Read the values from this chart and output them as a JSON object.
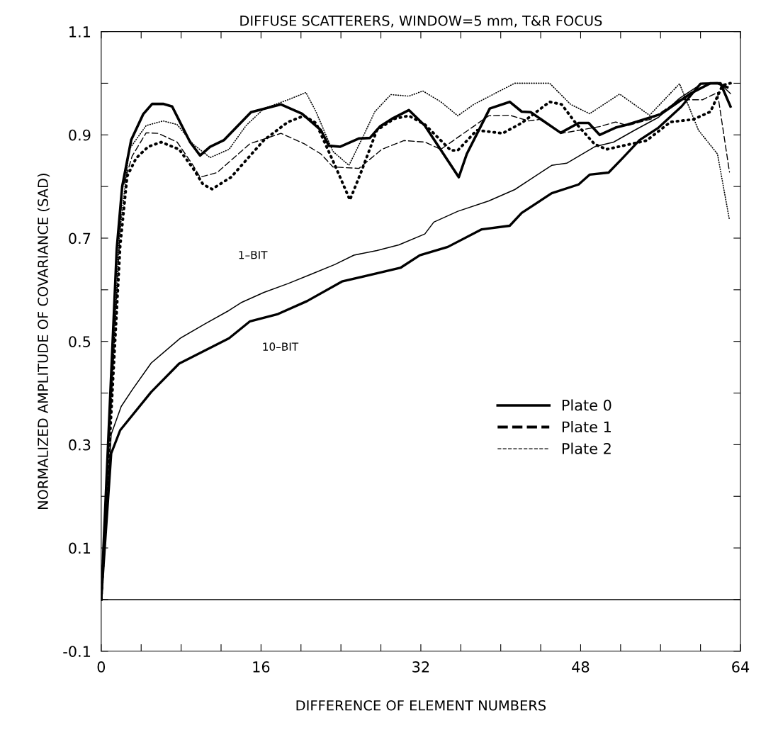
{
  "chart_data": {
    "type": "line",
    "title": "DIFFUSE SCATTERERS, WINDOW=5 mm, T&R FOCUS",
    "xlabel": "DIFFERENCE OF ELEMENT NUMBERS",
    "ylabel": "NORMALIZED AMPLITUDE OF COVARIANCE (SAD)",
    "xlim": [
      0,
      64
    ],
    "ylim": [
      -0.1,
      1.1
    ],
    "xticks": [
      0,
      {
        "value": 4,
        "label": null
      },
      {
        "value": 8,
        "label": null
      },
      {
        "value": 12,
        "label": null
      },
      16,
      {
        "value": 20,
        "label": null
      },
      {
        "value": 24,
        "label": null
      },
      {
        "value": 28,
        "label": null
      },
      32,
      {
        "value": 36,
        "label": null
      },
      {
        "value": 40,
        "label": null
      },
      {
        "value": 44,
        "label": null
      },
      48,
      {
        "value": 52,
        "label": null
      },
      {
        "value": 56,
        "label": null
      },
      {
        "value": 60,
        "label": null
      },
      64
    ],
    "yticks": [
      -0.1,
      {
        "value": 0,
        "label": null
      },
      0.1,
      {
        "value": 0.2,
        "label": null
      },
      0.3,
      {
        "value": 0.4,
        "label": null
      },
      0.5,
      {
        "value": 0.6,
        "label": null
      },
      0.7,
      {
        "value": 0.8,
        "label": null
      },
      0.9,
      {
        "value": 1.0,
        "label": null
      },
      1.1
    ],
    "grid": false,
    "legend": "right",
    "marker": "none",
    "ref_lines": [
      {
        "axis": "y",
        "value": 0,
        "color": "#000000"
      }
    ],
    "annotations": [
      "1–BIT",
      "10–BIT"
    ],
    "series": [
      {
        "name": "Plate 0",
        "color": "#000000",
        "line_style": "solid",
        "x": [
          0,
          1.56,
          2.1,
          3.0,
          4.2,
          5.1,
          6.2,
          7.1,
          8.9,
          9.9,
          10.9,
          12.3,
          15.0,
          18.0,
          20.1,
          22.0,
          22.8,
          23.9,
          25.8,
          26.9,
          27.9,
          29.1,
          30.8,
          32.4,
          35.8,
          36.6,
          38.9,
          40.9,
          42.1,
          43.0,
          46.0,
          47.8,
          48.8,
          49.9,
          51.5,
          52.7,
          56.0,
          59.0,
          61.0,
          62.0,
          63.0
        ],
        "values": [
          0,
          0.68,
          0.8,
          0.89,
          0.94,
          0.96,
          0.96,
          0.955,
          0.886,
          0.86,
          0.877,
          0.89,
          0.944,
          0.959,
          0.941,
          0.909,
          0.879,
          0.877,
          0.893,
          0.894,
          0.916,
          0.931,
          0.948,
          0.918,
          0.818,
          0.863,
          0.951,
          0.964,
          0.945,
          0.944,
          0.904,
          0.923,
          0.923,
          0.9,
          0.914,
          0.92,
          0.94,
          0.98,
          1.0,
          1.0,
          0.955
        ]
      },
      {
        "name": "Plate 1",
        "color": "#000000",
        "line_style": "dotted",
        "x": [
          0,
          1.9,
          2.6,
          3.5,
          4.7,
          6.0,
          7.8,
          9.2,
          10.2,
          11.1,
          13.0,
          16.3,
          18.7,
          20.3,
          21.5,
          23.4,
          24.9,
          26.0,
          27.6,
          29.3,
          30.8,
          32.4,
          35.0,
          35.7,
          37.6,
          40.2,
          42.1,
          44.9,
          46.1,
          47.5,
          49.4,
          50.6,
          54.6,
          57.0,
          59.3,
          61.0,
          62.2,
          63.0
        ],
        "values": [
          0,
          0.685,
          0.82,
          0.855,
          0.877,
          0.886,
          0.872,
          0.835,
          0.804,
          0.795,
          0.818,
          0.89,
          0.925,
          0.937,
          0.923,
          0.841,
          0.774,
          0.827,
          0.909,
          0.931,
          0.937,
          0.92,
          0.87,
          0.87,
          0.909,
          0.903,
          0.923,
          0.964,
          0.959,
          0.923,
          0.882,
          0.872,
          0.889,
          0.925,
          0.93,
          0.945,
          0.996,
          1.0
        ]
      },
      {
        "name": "Plate 2",
        "color": "#000000",
        "line_style": "dashed",
        "x": [
          0,
          2.1,
          3.1,
          4.5,
          5.7,
          7.6,
          9.2,
          9.9,
          11.6,
          14.9,
          18.0,
          20.3,
          22.0,
          23.2,
          25.8,
          28.1,
          30.3,
          32.4,
          34.0,
          38.8,
          40.9,
          42.8,
          43.9,
          46.1,
          49.9,
          51.5,
          52.7,
          55.1,
          57.9,
          60.2,
          61.7,
          62.9
        ],
        "values": [
          0,
          0.794,
          0.859,
          0.904,
          0.903,
          0.886,
          0.841,
          0.818,
          0.827,
          0.883,
          0.903,
          0.883,
          0.863,
          0.838,
          0.835,
          0.872,
          0.889,
          0.886,
          0.872,
          0.937,
          0.938,
          0.927,
          0.93,
          0.903,
          0.916,
          0.925,
          0.918,
          0.931,
          0.968,
          0.968,
          0.982,
          0.828
        ]
      },
      {
        "color": "#000000",
        "line_style": "dotted",
        "x": [
          0,
          1.8,
          2.8,
          4.5,
          6.2,
          7.6,
          9.2,
          10.9,
          12.8,
          14.5,
          16.3,
          18.7,
          20.5,
          21.5,
          23.2,
          24.8,
          26.2,
          27.4,
          29.0,
          30.8,
          32.2,
          34.0,
          35.7,
          37.3,
          41.4,
          44.9,
          47.0,
          48.9,
          51.9,
          54.9,
          57.9,
          59.8,
          61.7,
          62.9
        ],
        "values": [
          0,
          0.7,
          0.872,
          0.918,
          0.927,
          0.92,
          0.882,
          0.856,
          0.872,
          0.918,
          0.951,
          0.968,
          0.982,
          0.945,
          0.868,
          0.841,
          0.896,
          0.945,
          0.978,
          0.975,
          0.985,
          0.964,
          0.937,
          0.959,
          1.0,
          1.0,
          0.959,
          0.941,
          0.979,
          0.938,
          0.999,
          0.909,
          0.863,
          0.735
        ]
      },
      {
        "color": "#000000",
        "line_style": "solid",
        "x": [
          0,
          1.0,
          2.0,
          3.1,
          5.0,
          7.9,
          10.4,
          12.8,
          14.0,
          16.3,
          18.7,
          21.0,
          23.4,
          25.3,
          27.6,
          29.8,
          32.4,
          33.3,
          35.7,
          38.8,
          41.4,
          45.1,
          46.6,
          49.4,
          51.3,
          53.4,
          55.8,
          57.9,
          60.2,
          61.9,
          63.0
        ],
        "values": [
          0,
          0.32,
          0.374,
          0.406,
          0.458,
          0.506,
          0.534,
          0.56,
          0.575,
          0.595,
          0.612,
          0.63,
          0.649,
          0.667,
          0.676,
          0.687,
          0.708,
          0.731,
          0.752,
          0.772,
          0.794,
          0.841,
          0.845,
          0.877,
          0.886,
          0.909,
          0.934,
          0.971,
          1.0,
          1.0,
          0.98
        ]
      },
      {
        "color": "#000000",
        "line_style": "solid",
        "x": [
          0,
          1.0,
          1.9,
          5.0,
          7.8,
          12.8,
          14.9,
          17.7,
          20.6,
          24.1,
          27.6,
          30.0,
          31.9,
          34.7,
          38.1,
          40.9,
          42.1,
          45.1,
          47.8,
          48.9,
          50.8,
          52.2,
          53.9,
          55.8,
          58.1,
          60.0,
          61.7,
          62.7
        ],
        "values": [
          0,
          0.283,
          0.328,
          0.402,
          0.457,
          0.506,
          0.539,
          0.553,
          0.578,
          0.616,
          0.632,
          0.643,
          0.667,
          0.683,
          0.717,
          0.724,
          0.749,
          0.787,
          0.804,
          0.823,
          0.827,
          0.855,
          0.89,
          0.914,
          0.955,
          0.999,
          1.0,
          0.992
        ]
      }
    ]
  }
}
